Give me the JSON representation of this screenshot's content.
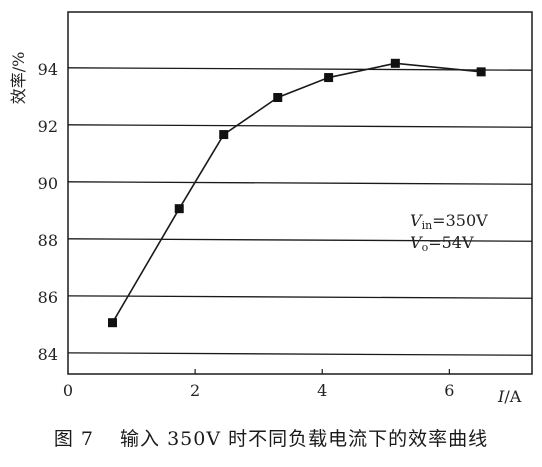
{
  "chart_data": {
    "type": "line",
    "xlabel_var": "I",
    "xlabel_unit": "/A",
    "ylabel": "效率/%",
    "xlim": [
      0,
      7.3
    ],
    "ylim": [
      83.3,
      96
    ],
    "x_ticks": [
      "0",
      "2",
      "4",
      "6"
    ],
    "y_ticks": [
      "84",
      "86",
      "88",
      "90",
      "92",
      "94"
    ],
    "grid": "horizontal",
    "series": [
      {
        "marker": "square",
        "x": [
          0.7,
          1.75,
          2.45,
          3.3,
          4.1,
          5.15,
          6.5
        ],
        "y": [
          85.1,
          89.1,
          91.7,
          93.0,
          93.7,
          94.2,
          93.9
        ]
      }
    ],
    "annotations": {
      "vin_var": "V",
      "vin_sub": "in",
      "vin_value": "=350V",
      "vo_var": "V",
      "vo_sub": "o",
      "vo_value": "=54V"
    }
  },
  "caption": {
    "figure_number": "图 7",
    "text": "输入 350V 时不同负载电流下的效率曲线"
  }
}
